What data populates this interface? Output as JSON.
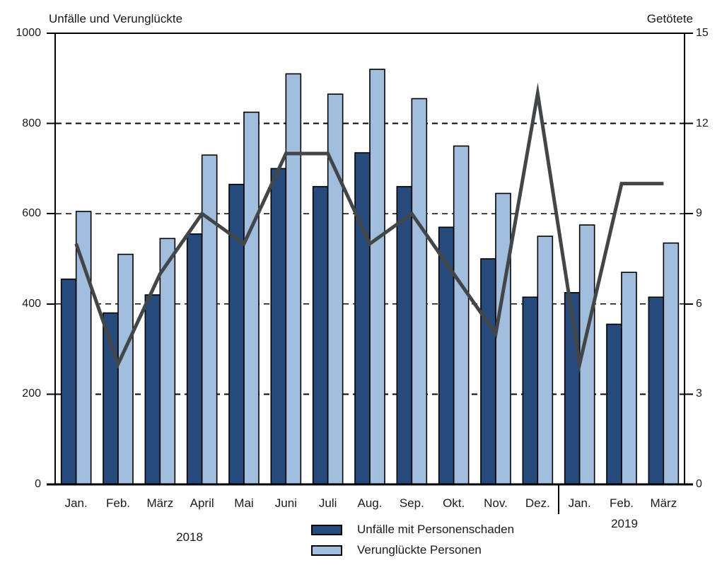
{
  "legend": [
    {
      "label": "Unfälle mit Personenschaden",
      "color": "#264A7C"
    },
    {
      "label": "Verunglückte Personen",
      "color": "#A2BEDF"
    }
  ],
  "chart_data": {
    "type": "bar",
    "categories": [
      "Jan.",
      "Feb.",
      "März",
      "April",
      "Mai",
      "Juni",
      "Juli",
      "Aug.",
      "Sep.",
      "Okt.",
      "Nov.",
      "Dez.",
      "Jan.",
      "Feb.",
      "März"
    ],
    "year_groups": [
      {
        "label": "2018",
        "from": 0,
        "to": 11
      },
      {
        "label": "2019",
        "from": 12,
        "to": 14
      }
    ],
    "year_divider_after_index": 11,
    "series": [
      {
        "name": "Unfälle mit Personenschaden",
        "type": "bar",
        "axis": "left",
        "color": "#264A7C",
        "values": [
          455,
          380,
          420,
          555,
          665,
          700,
          660,
          735,
          660,
          570,
          500,
          415,
          425,
          355,
          415
        ]
      },
      {
        "name": "Verunglückte Personen",
        "type": "bar",
        "axis": "left",
        "color": "#A2BEDF",
        "values": [
          605,
          510,
          545,
          730,
          825,
          910,
          865,
          920,
          855,
          750,
          645,
          550,
          575,
          470,
          535
        ]
      },
      {
        "name": "Getötete",
        "type": "line",
        "axis": "right",
        "color": "#434649",
        "values": [
          8,
          4,
          7,
          9,
          8,
          11,
          11,
          8,
          9,
          7,
          5,
          13,
          4,
          10,
          10
        ]
      }
    ],
    "left_axis": {
      "title": "Unfälle und Verunglückte",
      "ticks": [
        0,
        200,
        400,
        600,
        800,
        1000
      ],
      "range": [
        0,
        1000
      ]
    },
    "right_axis": {
      "title": "Getötete",
      "ticks": [
        0,
        3,
        6,
        9,
        12,
        15
      ],
      "range": [
        0,
        15
      ]
    },
    "gridlines": [
      200,
      400,
      600,
      800
    ],
    "grid": "dashed horizontal",
    "legend_position": "bottom-center"
  }
}
